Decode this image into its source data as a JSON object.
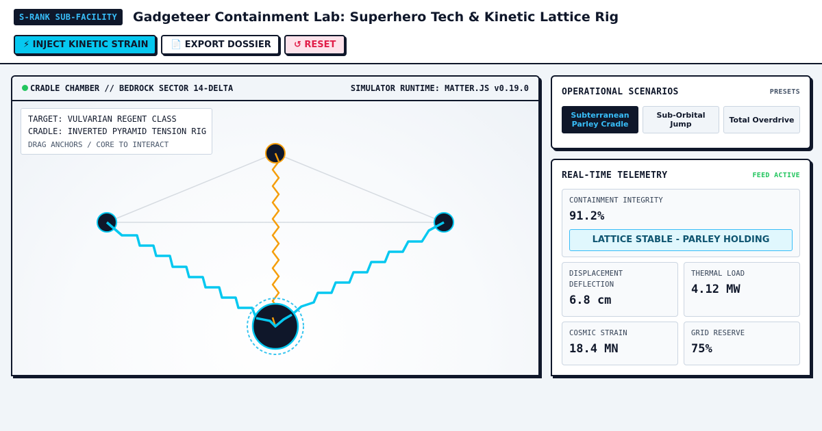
{
  "header": {
    "badge": "S-RANK SUB-FACILITY",
    "title": "Gadgeteer Containment Lab: Superhero Tech & Kinetic Lattice Rig",
    "buttons": {
      "inject": "⚡ INJECT KINETIC STRAIN",
      "export": "📄 EXPORT DOSSIER",
      "reset": "↺ RESET"
    }
  },
  "chamber": {
    "title": "CRADLE CHAMBER // BEDROCK SECTOR 14-DELTA",
    "runtime": "SIMULATOR RUNTIME: MATTER.JS v0.19.0",
    "info": {
      "target": "TARGET: VULVARIAN REGENT CLASS",
      "cradle": "CRADLE: INVERTED PYRAMID TENSION RIG",
      "hint": "DRAG ANCHORS / CORE TO INTERACT"
    }
  },
  "scenarios": {
    "title": "OPERATIONAL SCENARIOS",
    "tag": "PRESETS",
    "items": [
      {
        "label": "Subterranean Parley Cradle",
        "active": true
      },
      {
        "label": "Sub-Orbital Jump",
        "active": false
      },
      {
        "label": "Total Overdrive",
        "active": false
      }
    ]
  },
  "telemetry": {
    "title": "REAL-TIME TELEMETRY",
    "tag": "FEED ACTIVE",
    "integrity": {
      "label": "CONTAINMENT INTEGRITY",
      "value": "91.2%",
      "status": "LATTICE STABLE - PARLEY HOLDING"
    },
    "displacement": {
      "label": "DISPLACEMENT DEFLECTION",
      "value": "6.8 cm"
    },
    "thermal": {
      "label": "THERMAL LOAD",
      "value": "4.12 MW"
    },
    "strain": {
      "label": "COSMIC STRAIN",
      "value": "18.4 MN"
    },
    "grid": {
      "label": "GRID RESERVE",
      "value": "75%"
    }
  },
  "colors": {
    "accent": "#06c8f0",
    "tether_vertical": "#f59e0b",
    "node_fill": "#0f172a",
    "live": "#22c55e",
    "reset": "#e11d48"
  }
}
